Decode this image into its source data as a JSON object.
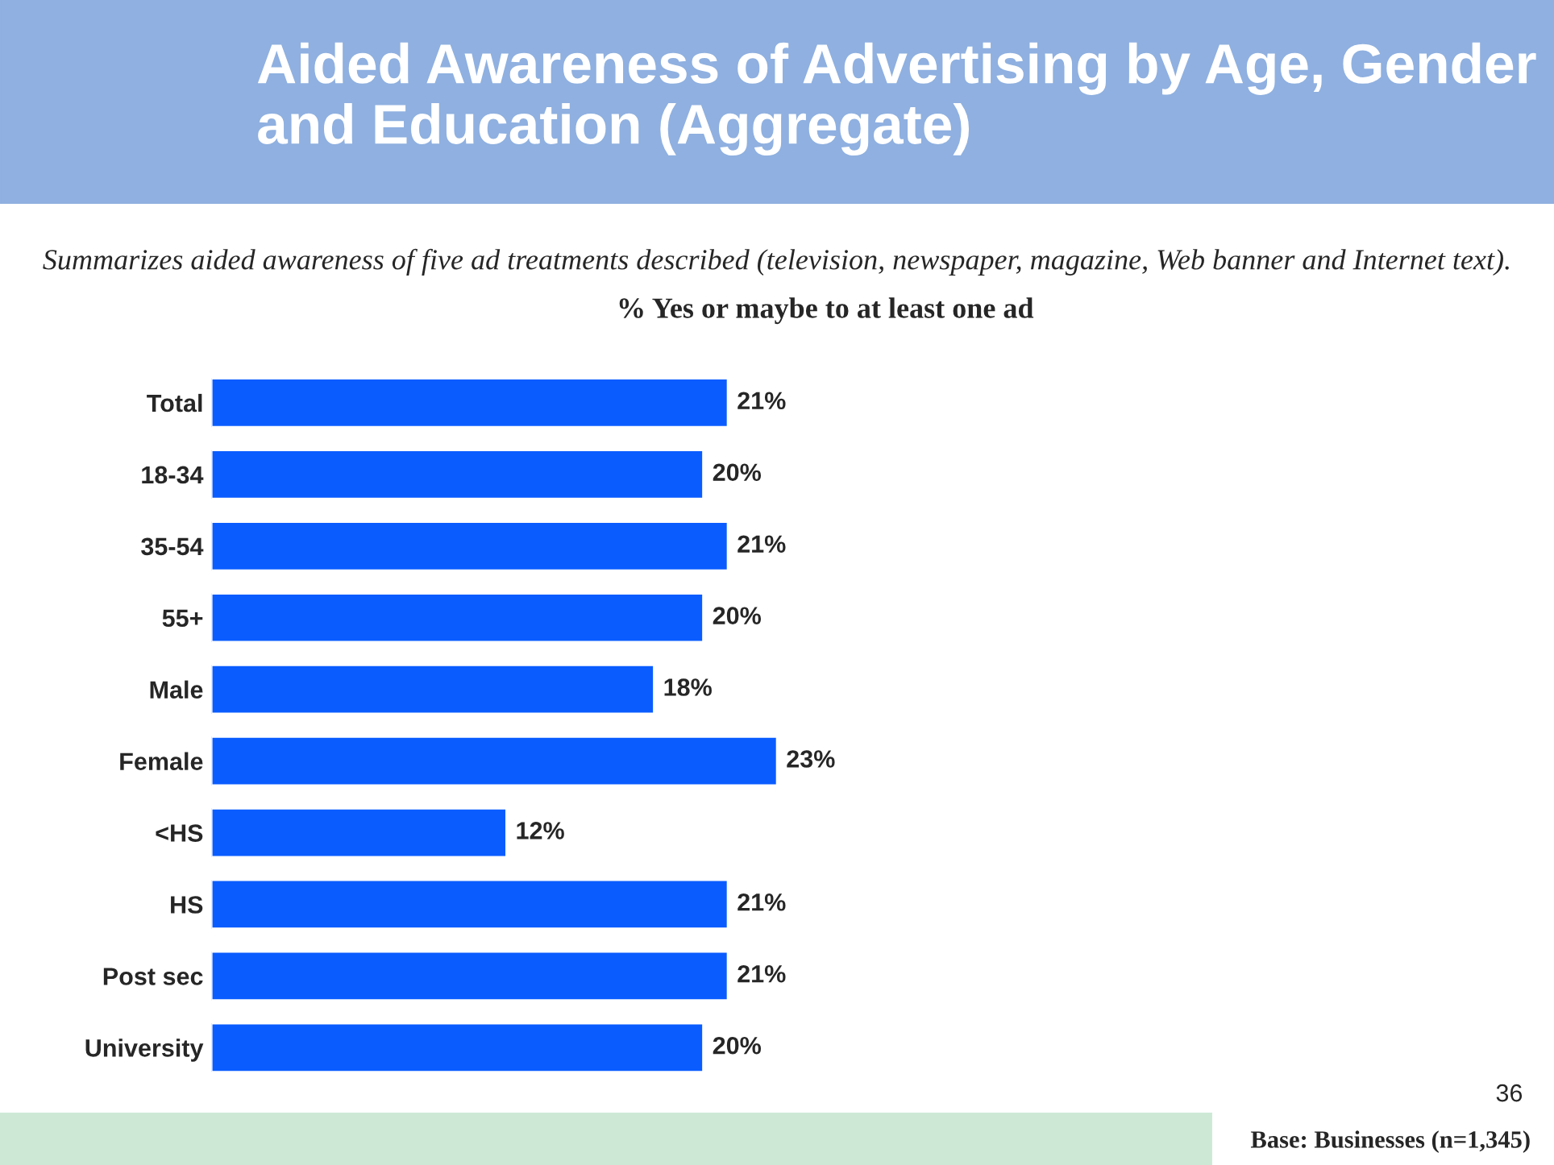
{
  "chart_data": {
    "type": "bar",
    "orientation": "horizontal",
    "title": "Aided Awareness of Advertising by Age, Gender and Education (Aggregate)",
    "subtitle": "Summarizes aided awareness of five ad treatments described (television, newspaper, magazine, Web banner and Internet text).",
    "xlabel": "% Yes or maybe to at least one ad",
    "categories": [
      "Total",
      "18-34",
      "35-54",
      "55+",
      "Male",
      "Female",
      "<HS",
      "HS",
      "Post sec",
      "University"
    ],
    "values": [
      21,
      20,
      21,
      20,
      18,
      23,
      12,
      21,
      21,
      20
    ],
    "value_labels": [
      "21%",
      "20%",
      "21%",
      "20%",
      "18%",
      "23%",
      "12%",
      "21%",
      "21%",
      "20%"
    ],
    "color": "#0a5cff",
    "tick_labels": "y",
    "grid": false,
    "legend": false,
    "annotations": [
      "36",
      "Base: Businesses (n=1,345)"
    ]
  }
}
